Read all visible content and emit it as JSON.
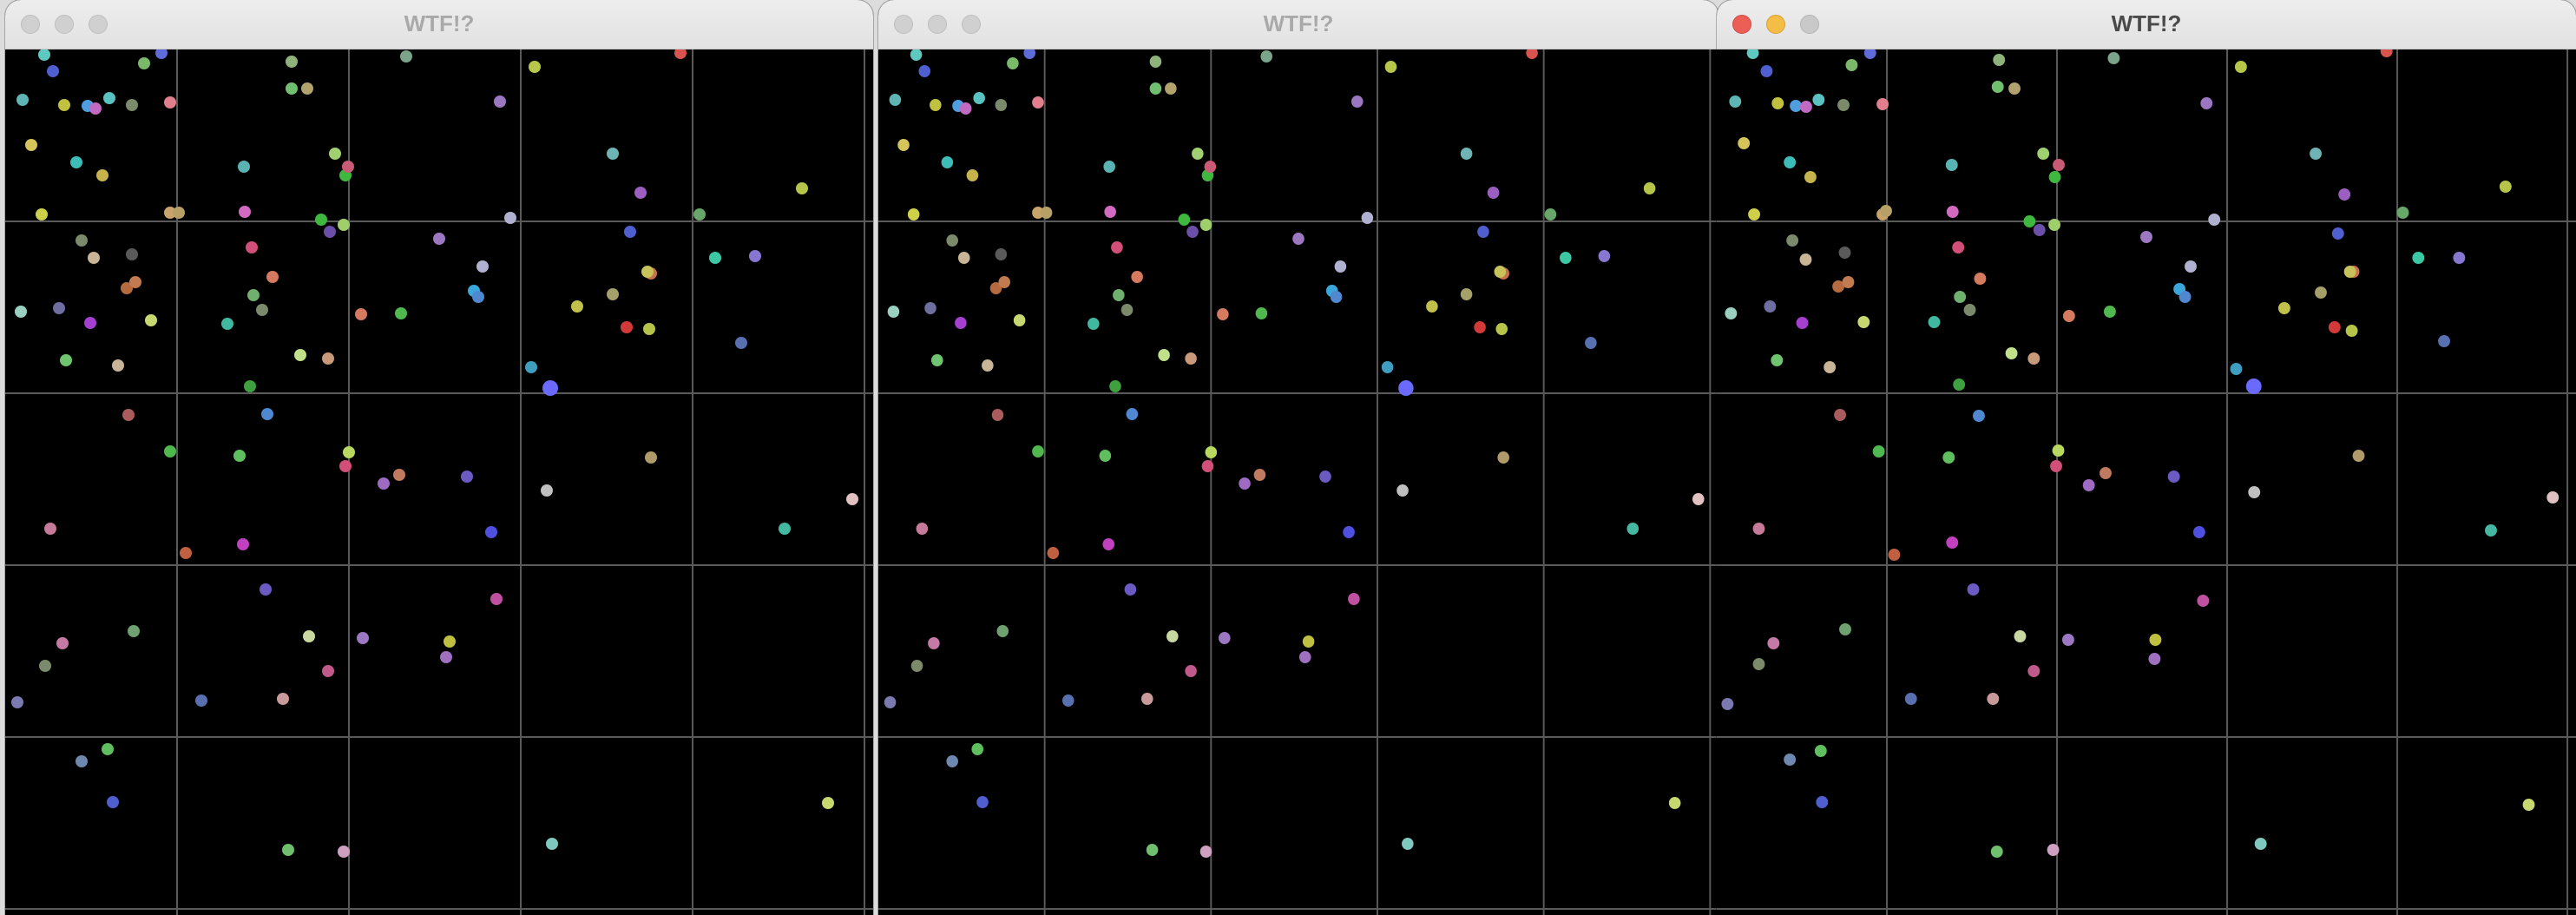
{
  "windows": [
    {
      "title": "WTF!?",
      "active": false
    },
    {
      "title": "WTF!?",
      "active": false
    },
    {
      "title": "WTF!?",
      "active": true
    }
  ],
  "colors": {
    "canvas_bg": "#000000",
    "grid_line": "#5a5a5a",
    "title_active": "#4a4a4a",
    "title_inactive": "#a9a9a9"
  }
}
